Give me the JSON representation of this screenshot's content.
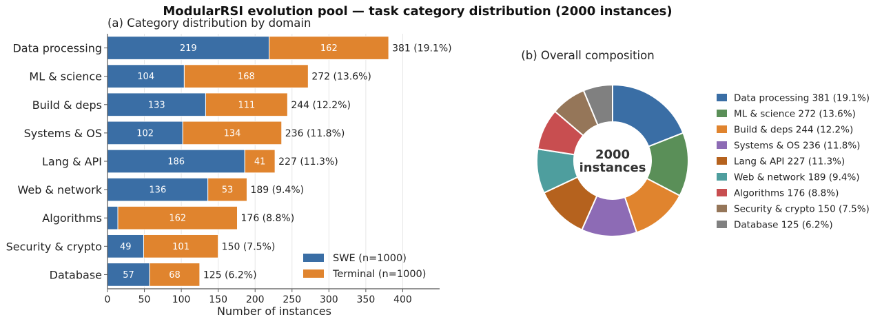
{
  "title": "ModularRSI evolution pool — task category distribution (2000 instances)",
  "colors": {
    "swe": "#3A6EA5",
    "terminal": "#E0842E",
    "grid": "#e6e6e6",
    "axis": "#555555",
    "text": "#222222",
    "segment_label": "#ffffff"
  },
  "chart_data": [
    {
      "type": "bar",
      "orientation": "horizontal",
      "stacked": true,
      "title": "(a) Category distribution by domain",
      "xlabel": "Number of instances",
      "ylabel": "",
      "xlim": [
        0,
        450
      ],
      "xticks": [
        0,
        50,
        100,
        150,
        200,
        250,
        300,
        350,
        400
      ],
      "grid": "vertical",
      "categories": [
        "Data processing",
        "ML & science",
        "Build & deps",
        "Systems & OS",
        "Lang & API",
        "Web & network",
        "Algorithms",
        "Security & crypto",
        "Database"
      ],
      "series": [
        {
          "name": "SWE (n=1000)",
          "values": [
            219,
            104,
            133,
            102,
            186,
            136,
            14,
            49,
            57
          ]
        },
        {
          "name": "Terminal (n=1000)",
          "values": [
            162,
            168,
            111,
            134,
            41,
            53,
            162,
            101,
            68
          ]
        }
      ],
      "segment_labels": [
        [
          "219",
          "104",
          "133",
          "102",
          "186",
          "136",
          "",
          "49",
          "57"
        ],
        [
          "162",
          "168",
          "111",
          "134",
          "41",
          "53",
          "162",
          "101",
          "68"
        ]
      ],
      "total_labels": [
        "381  (19.1%)",
        "272  (13.6%)",
        "244  (12.2%)",
        "236  (11.8%)",
        "227  (11.3%)",
        "189  (9.4%)",
        "176  (8.8%)",
        "150  (7.5%)",
        "125  (6.2%)"
      ],
      "legend_position": "lower-right"
    },
    {
      "type": "pie",
      "donut": true,
      "title": "(b) Overall composition",
      "center_text": [
        "2000",
        "instances"
      ],
      "slices": [
        {
          "name": "Data processing",
          "value": 381,
          "legend": "Data processing  381 (19.1%)",
          "color": "#3A6EA5"
        },
        {
          "name": "ML & science",
          "value": 272,
          "legend": "ML & science  272 (13.6%)",
          "color": "#5A8F58"
        },
        {
          "name": "Build & deps",
          "value": 244,
          "legend": "Build & deps  244 (12.2%)",
          "color": "#E0842E"
        },
        {
          "name": "Systems & OS",
          "value": 236,
          "legend": "Systems & OS  236 (11.8%)",
          "color": "#8D6BB5"
        },
        {
          "name": "Lang & API",
          "value": 227,
          "legend": "Lang & API  227 (11.3%)",
          "color": "#B5621E"
        },
        {
          "name": "Web & network",
          "value": 189,
          "legend": "Web & network  189 (9.4%)",
          "color": "#4E9E9E"
        },
        {
          "name": "Algorithms",
          "value": 176,
          "legend": "Algorithms  176 (8.8%)",
          "color": "#C84E50"
        },
        {
          "name": "Security & crypto",
          "value": 150,
          "legend": "Security & crypto  150 (7.5%)",
          "color": "#957659"
        },
        {
          "name": "Database",
          "value": 125,
          "legend": "Database  125 (6.2%)",
          "color": "#808080"
        }
      ],
      "legend_position": "right"
    }
  ]
}
